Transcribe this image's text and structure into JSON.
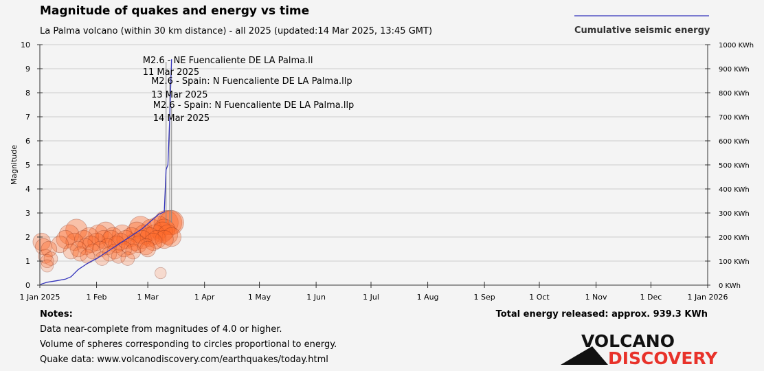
{
  "chart_data": {
    "type": "scatter",
    "title": "Magnitude of quakes and energy vs time",
    "subtitle": "La Palma volcano (within 30 km distance) - all 2025 (updated:14 Mar 2025, 13:45 GMT)",
    "ylabel": "Magnitude",
    "ylim": [
      0,
      10
    ],
    "y_ticks": [
      "0",
      "1",
      "2",
      "3",
      "4",
      "5",
      "6",
      "7",
      "8",
      "9",
      "10"
    ],
    "y2lim": [
      0,
      1000
    ],
    "y2_ticks": [
      "0 KWh",
      "100 KWh",
      "200 KWh",
      "300 KWh",
      "400 KWh",
      "500 KWh",
      "600 KWh",
      "700 KWh",
      "800 KWh",
      "900 KWh",
      "1000 KWh"
    ],
    "xlim": [
      "2025-01-01",
      "2026-01-01"
    ],
    "x_ticks": [
      {
        "date": "2025-01-01",
        "label": "1 Jan 2025"
      },
      {
        "date": "2025-02-01",
        "label": "1 Feb"
      },
      {
        "date": "2025-03-01",
        "label": "1 Mar"
      },
      {
        "date": "2025-04-01",
        "label": "1 Apr"
      },
      {
        "date": "2025-05-01",
        "label": "1 May"
      },
      {
        "date": "2025-06-01",
        "label": "1 Jun"
      },
      {
        "date": "2025-07-01",
        "label": "1 Jul"
      },
      {
        "date": "2025-08-01",
        "label": "1 Aug"
      },
      {
        "date": "2025-09-01",
        "label": "1 Sep"
      },
      {
        "date": "2025-10-01",
        "label": "1 Oct"
      },
      {
        "date": "2025-11-01",
        "label": "1 Nov"
      },
      {
        "date": "2025-12-01",
        "label": "1 Dec"
      },
      {
        "date": "2026-01-01",
        "label": "1 Jan 2026"
      }
    ],
    "grid": true,
    "legend": {
      "position": "top-right",
      "entries": [
        "Cumulative seismic energy"
      ]
    },
    "quakes": [
      {
        "date": "2025-01-02",
        "mag": 1.8
      },
      {
        "date": "2025-01-03",
        "mag": 1.6
      },
      {
        "date": "2025-01-04",
        "mag": 1.2
      },
      {
        "date": "2025-01-05",
        "mag": 1.0
      },
      {
        "date": "2025-01-05",
        "mag": 0.8
      },
      {
        "date": "2025-01-06",
        "mag": 1.5
      },
      {
        "date": "2025-01-07",
        "mag": 1.1
      },
      {
        "date": "2025-01-12",
        "mag": 1.7
      },
      {
        "date": "2025-01-15",
        "mag": 1.9
      },
      {
        "date": "2025-01-17",
        "mag": 2.1
      },
      {
        "date": "2025-01-18",
        "mag": 1.4
      },
      {
        "date": "2025-01-20",
        "mag": 1.8
      },
      {
        "date": "2025-01-21",
        "mag": 2.3
      },
      {
        "date": "2025-01-22",
        "mag": 1.5
      },
      {
        "date": "2025-01-23",
        "mag": 1.3
      },
      {
        "date": "2025-01-25",
        "mag": 1.9
      },
      {
        "date": "2025-01-26",
        "mag": 1.6
      },
      {
        "date": "2025-01-27",
        "mag": 1.2
      },
      {
        "date": "2025-01-28",
        "mag": 2.0
      },
      {
        "date": "2025-01-29",
        "mag": 1.7
      },
      {
        "date": "2025-01-30",
        "mag": 1.4
      },
      {
        "date": "2025-02-01",
        "mag": 1.8
      },
      {
        "date": "2025-02-02",
        "mag": 2.1
      },
      {
        "date": "2025-02-03",
        "mag": 1.5
      },
      {
        "date": "2025-02-04",
        "mag": 1.1
      },
      {
        "date": "2025-02-05",
        "mag": 1.9
      },
      {
        "date": "2025-02-06",
        "mag": 2.2
      },
      {
        "date": "2025-02-07",
        "mag": 1.6
      },
      {
        "date": "2025-02-08",
        "mag": 1.3
      },
      {
        "date": "2025-02-09",
        "mag": 1.9
      },
      {
        "date": "2025-02-10",
        "mag": 2.0
      },
      {
        "date": "2025-02-11",
        "mag": 1.4
      },
      {
        "date": "2025-02-12",
        "mag": 1.7
      },
      {
        "date": "2025-02-13",
        "mag": 1.2
      },
      {
        "date": "2025-02-14",
        "mag": 1.8
      },
      {
        "date": "2025-02-15",
        "mag": 2.1
      },
      {
        "date": "2025-02-16",
        "mag": 1.5
      },
      {
        "date": "2025-02-17",
        "mag": 1.9
      },
      {
        "date": "2025-02-18",
        "mag": 1.1
      },
      {
        "date": "2025-02-19",
        "mag": 1.6
      },
      {
        "date": "2025-02-20",
        "mag": 2.0
      },
      {
        "date": "2025-02-21",
        "mag": 1.4
      },
      {
        "date": "2025-02-22",
        "mag": 1.8
      },
      {
        "date": "2025-02-23",
        "mag": 2.2
      },
      {
        "date": "2025-02-24",
        "mag": 1.7
      },
      {
        "date": "2025-02-25",
        "mag": 2.4
      },
      {
        "date": "2025-02-26",
        "mag": 1.9
      },
      {
        "date": "2025-02-27",
        "mag": 2.1
      },
      {
        "date": "2025-02-28",
        "mag": 1.6
      },
      {
        "date": "2025-03-01",
        "mag": 1.5
      },
      {
        "date": "2025-03-02",
        "mag": 2.0
      },
      {
        "date": "2025-03-03",
        "mag": 2.3
      },
      {
        "date": "2025-03-04",
        "mag": 1.8
      },
      {
        "date": "2025-03-05",
        "mag": 2.1
      },
      {
        "date": "2025-03-06",
        "mag": 1.9
      },
      {
        "date": "2025-03-07",
        "mag": 2.4
      },
      {
        "date": "2025-03-08",
        "mag": 0.5
      },
      {
        "date": "2025-03-09",
        "mag": 2.2
      },
      {
        "date": "2025-03-10",
        "mag": 1.9
      },
      {
        "date": "2025-03-10",
        "mag": 2.3
      },
      {
        "date": "2025-03-11",
        "mag": 2.6
      },
      {
        "date": "2025-03-12",
        "mag": 2.1
      },
      {
        "date": "2025-03-13",
        "mag": 2.6
      },
      {
        "date": "2025-03-14",
        "mag": 2.6
      },
      {
        "date": "2025-03-14",
        "mag": 2.0
      }
    ],
    "energy_cumulative": [
      {
        "date": "2025-01-01",
        "kwh": 0
      },
      {
        "date": "2025-01-02",
        "kwh": 5
      },
      {
        "date": "2025-01-05",
        "kwh": 12
      },
      {
        "date": "2025-01-10",
        "kwh": 18
      },
      {
        "date": "2025-01-15",
        "kwh": 25
      },
      {
        "date": "2025-01-18",
        "kwh": 35
      },
      {
        "date": "2025-01-22",
        "kwh": 65
      },
      {
        "date": "2025-01-25",
        "kwh": 80
      },
      {
        "date": "2025-01-28",
        "kwh": 95
      },
      {
        "date": "2025-02-01",
        "kwh": 110
      },
      {
        "date": "2025-02-05",
        "kwh": 130
      },
      {
        "date": "2025-02-10",
        "kwh": 155
      },
      {
        "date": "2025-02-14",
        "kwh": 175
      },
      {
        "date": "2025-02-18",
        "kwh": 195
      },
      {
        "date": "2025-02-22",
        "kwh": 215
      },
      {
        "date": "2025-02-26",
        "kwh": 235
      },
      {
        "date": "2025-03-01",
        "kwh": 255
      },
      {
        "date": "2025-03-04",
        "kwh": 275
      },
      {
        "date": "2025-03-07",
        "kwh": 295
      },
      {
        "date": "2025-03-10",
        "kwh": 305
      },
      {
        "date": "2025-03-11",
        "kwh": 480
      },
      {
        "date": "2025-03-12",
        "kwh": 500
      },
      {
        "date": "2025-03-13",
        "kwh": 700
      },
      {
        "date": "2025-03-14",
        "kwh": 939.3
      }
    ],
    "annotations": [
      {
        "date": "2025-03-11",
        "mag": 2.6,
        "line1": "M2.6 - NE Fuencaliente DE LA Palma.ll",
        "line2": "11 Mar 2025"
      },
      {
        "date": "2025-03-13",
        "mag": 2.6,
        "line1": "M2.6 - Spain: N Fuencaliente DE LA Palma.llp",
        "line2": "13 Mar 2025"
      },
      {
        "date": "2025-03-14",
        "mag": 2.6,
        "line1": "M2.6 - Spain: N Fuencaliente DE LA Palma.llp",
        "line2": "14 Mar 2025"
      }
    ],
    "colors": {
      "bubble_fill": "#ff6a2a",
      "bubble_stroke": "#7a2a1a",
      "energy_line": "#3333bb",
      "grid": "#cccccc",
      "axis": "#333333",
      "bg": "#f4f4f4"
    }
  },
  "notes": {
    "heading": "Notes:",
    "lines": [
      "Data near-complete from magnitudes of 4.0 or higher.",
      "Volume of spheres corresponding to circles proportional to energy.",
      "Quake data: www.volcanodiscovery.com/earthquakes/today.html"
    ]
  },
  "total_energy": "Total energy released: approx. 939.3 KWh",
  "logo": {
    "line1": "VOLCANO",
    "line2": "DISCOVERY"
  }
}
